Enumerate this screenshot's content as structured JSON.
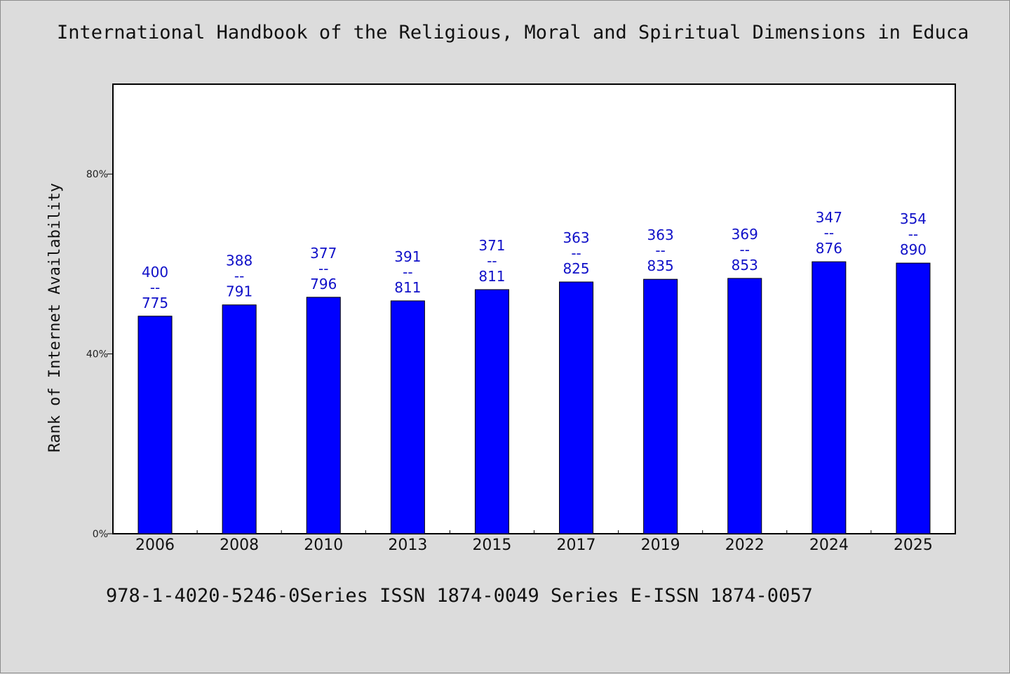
{
  "title": "International Handbook of the Religious, Moral and Spiritual Dimensions in Educa",
  "footer": "978-1-4020-5246-0Series ISSN 1874-0049 Series E-ISSN 1874-0057",
  "colors": {
    "bar": "#0000ff",
    "label": "#1010c8",
    "background": "#dcdcdc",
    "plot": "#ffffff"
  },
  "chart_data": {
    "type": "bar",
    "title": "International Handbook of the Religious, Moral and Spiritual Dimensions in Educa",
    "xlabel": "",
    "ylabel": "Rank of Internet Availability",
    "ylim": [
      0,
      100
    ],
    "yticks": [
      0,
      40,
      80
    ],
    "ytick_labels": [
      "0%",
      "40%",
      "80%"
    ],
    "grid": false,
    "categories": [
      "2006",
      "2008",
      "2010",
      "2013",
      "2015",
      "2017",
      "2019",
      "2022",
      "2024",
      "2025"
    ],
    "values": [
      48.4,
      50.9,
      52.6,
      51.8,
      54.3,
      56.0,
      56.6,
      56.8,
      60.5,
      60.2
    ],
    "annotations": [
      [
        "400",
        "--",
        "775"
      ],
      [
        "388",
        "--",
        "791"
      ],
      [
        "377",
        "--",
        "796"
      ],
      [
        "391",
        "--",
        "811"
      ],
      [
        "371",
        "--",
        "811"
      ],
      [
        "363",
        "--",
        "825"
      ],
      [
        "363",
        "--",
        "835"
      ],
      [
        "369",
        "--",
        "853"
      ],
      [
        "347",
        "--",
        "876"
      ],
      [
        "354",
        "--",
        "890"
      ]
    ]
  }
}
